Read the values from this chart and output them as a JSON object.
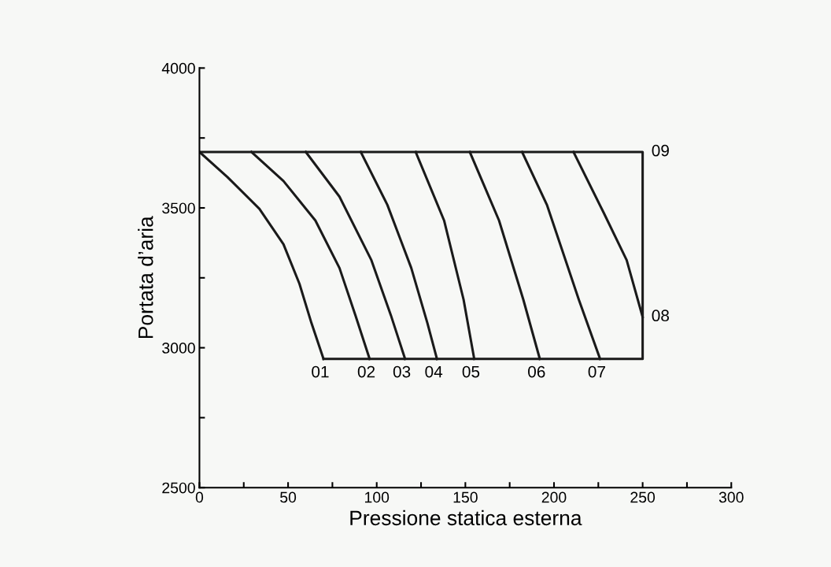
{
  "chart_data": {
    "type": "line",
    "xlabel": "Pressione statica esterna",
    "ylabel": "Portata d’aria",
    "xlim": [
      0,
      300
    ],
    "ylim": [
      2500,
      4000
    ],
    "xticks": [
      0,
      {
        "value": 25,
        "label": null
      },
      50,
      {
        "value": 75,
        "label": null
      },
      100,
      {
        "value": 125,
        "label": null
      },
      150,
      {
        "value": 175,
        "label": null
      },
      200,
      {
        "value": 225,
        "label": null
      },
      250,
      {
        "value": 275,
        "label": null
      },
      300
    ],
    "yticks": [
      2500,
      {
        "value": 2750,
        "label": null
      },
      3000,
      {
        "value": 3250,
        "label": null
      },
      3500,
      {
        "value": 3750,
        "label": null
      },
      4000
    ],
    "grid": false,
    "legend": false,
    "marker": "none",
    "line_style": "solid",
    "series": [
      {
        "color": "#1a1a1a",
        "x": [
          0,
          15.8,
          33.8,
          47.4,
          56.4,
          63.2,
          70
        ],
        "values": [
          3700,
          3610,
          3497,
          3370,
          3229,
          3088,
          2960
        ]
      },
      {
        "color": "#1a1a1a",
        "x": [
          29.3,
          47.4,
          65.4,
          79,
          88,
          96
        ],
        "values": [
          3700,
          3596,
          3455,
          3285,
          3116,
          2960
        ]
      },
      {
        "color": "#1a1a1a",
        "x": [
          60,
          79,
          97,
          108,
          116
        ],
        "values": [
          3700,
          3540,
          3313,
          3116,
          2960
        ]
      },
      {
        "color": "#1a1a1a",
        "x": [
          91,
          106,
          119.5,
          128.6,
          134
        ],
        "values": [
          3700,
          3511,
          3285,
          3088,
          2960
        ]
      },
      {
        "color": "#1a1a1a",
        "x": [
          122,
          138,
          149,
          155
        ],
        "values": [
          3700,
          3455,
          3172,
          2960
        ]
      },
      {
        "color": "#1a1a1a",
        "x": [
          152.5,
          169,
          182.7,
          192
        ],
        "values": [
          3700,
          3455,
          3172,
          2960
        ]
      },
      {
        "color": "#1a1a1a",
        "x": [
          182,
          196,
          214,
          226
        ],
        "values": [
          3700,
          3511,
          3172,
          2960
        ]
      },
      {
        "color": "#1a1a1a",
        "x": [
          211,
          228,
          241,
          250
        ],
        "values": [
          3700,
          3483,
          3313,
          3110
        ]
      },
      {
        "color": "#1a1a1a",
        "x": [
          0,
          250,
          250,
          70
        ],
        "values": [
          3700,
          3700,
          2960,
          2960
        ]
      }
    ],
    "annotations": [
      {
        "text": "01",
        "x": 70,
        "y": 2960
      },
      {
        "text": "02",
        "x": 96,
        "y": 2960
      },
      {
        "text": "03",
        "x": 116,
        "y": 2960
      },
      {
        "text": "04",
        "x": 134,
        "y": 2960
      },
      {
        "text": "05",
        "x": 155,
        "y": 2960
      },
      {
        "text": "06",
        "x": 192,
        "y": 2960
      },
      {
        "text": "07",
        "x": 226,
        "y": 2960
      },
      {
        "text": "08",
        "x": 250,
        "y": 3110
      },
      {
        "text": "09",
        "x": 250,
        "y": 3700
      }
    ]
  }
}
